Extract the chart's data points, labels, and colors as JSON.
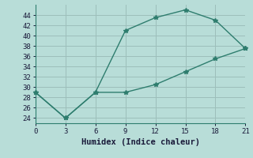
{
  "line1_x": [
    0,
    3,
    6,
    9,
    12,
    15,
    18,
    21
  ],
  "line1_y": [
    29,
    24,
    29,
    41,
    43.5,
    45,
    43,
    37.5
  ],
  "line2_x": [
    0,
    3,
    6,
    9,
    12,
    15,
    18,
    21
  ],
  "line2_y": [
    29,
    24,
    29,
    29,
    30.5,
    33,
    35.5,
    37.5
  ],
  "line_color": "#2e7d6e",
  "bg_color": "#b8ddd8",
  "grid_color": "#9dbfbb",
  "xlabel": "Humidex (Indice chaleur)",
  "xlim": [
    0,
    21
  ],
  "ylim": [
    23,
    46
  ],
  "xticks": [
    0,
    3,
    6,
    9,
    12,
    15,
    18,
    21
  ],
  "yticks": [
    24,
    26,
    28,
    30,
    32,
    34,
    36,
    38,
    40,
    42,
    44
  ],
  "marker": "*",
  "linewidth": 1.0,
  "markersize": 4,
  "tick_fontsize": 6.5,
  "xlabel_fontsize": 7.5
}
